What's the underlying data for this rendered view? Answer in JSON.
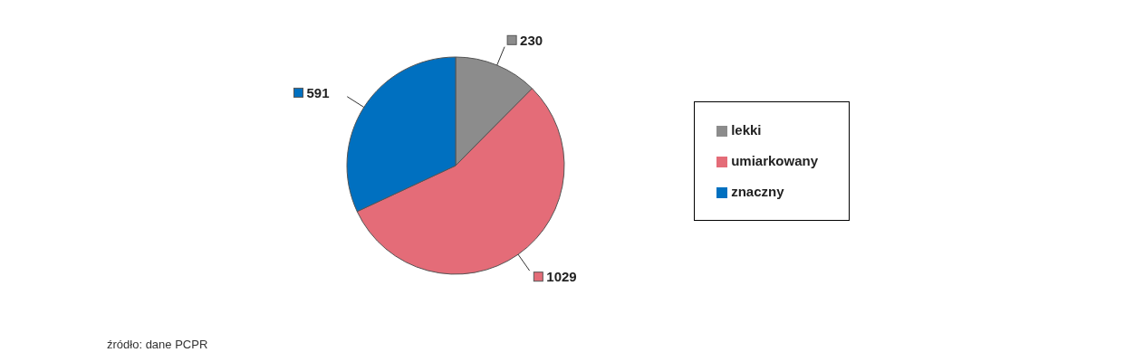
{
  "chart_data": {
    "type": "pie",
    "categories": [
      "lekki",
      "umiarkowany",
      "znaczny"
    ],
    "values": [
      230,
      1029,
      591
    ],
    "colors": [
      "#8c8c8c",
      "#e46c78",
      "#0070c0"
    ],
    "data_labels": true,
    "legend": "right",
    "annotations": [
      "źródło: dane PCPR"
    ]
  }
}
